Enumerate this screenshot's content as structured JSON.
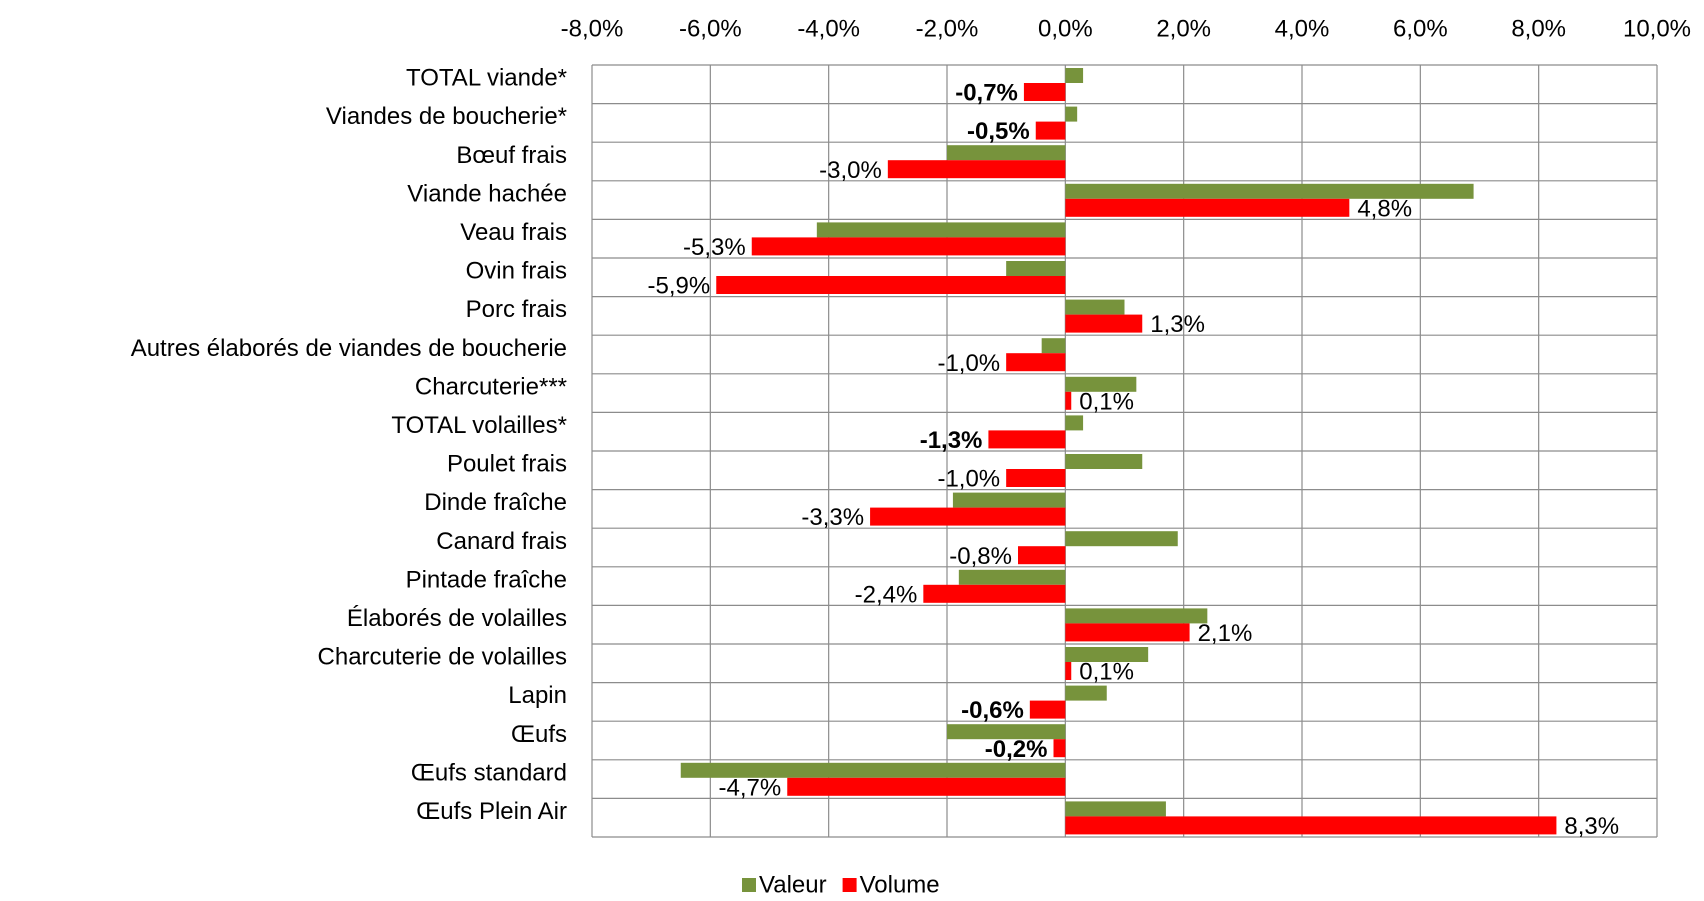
{
  "chart_data": {
    "type": "barh",
    "categories": [
      "TOTAL viande*",
      "Viandes de boucherie*",
      "Bœuf frais",
      "Viande hachée",
      "Veau frais",
      "Ovin frais",
      "Porc frais",
      "Autres élaborés de viandes de boucherie",
      "Charcuterie***",
      "TOTAL volailles*",
      "Poulet frais",
      "Dinde fraîche",
      "Canard frais",
      "Pintade fraîche",
      "Élaborés de volailles",
      "Charcuterie de volailles",
      "Lapin",
      "Œufs",
      "Œufs standard",
      "Œufs Plein Air"
    ],
    "series": [
      {
        "name": "Valeur",
        "color": "#77933c",
        "values": [
          0.3,
          0.2,
          -2.0,
          6.9,
          -4.2,
          -1.0,
          1.0,
          -0.4,
          1.2,
          0.3,
          1.3,
          -1.9,
          1.9,
          -1.8,
          2.4,
          1.4,
          0.7,
          -2.0,
          -6.5,
          1.7
        ]
      },
      {
        "name": "Volume",
        "color": "#ff0000",
        "values": [
          -0.7,
          -0.5,
          -3.0,
          4.8,
          -5.3,
          -5.9,
          1.3,
          -1.0,
          0.1,
          -1.3,
          -1.0,
          -3.3,
          -0.8,
          -2.4,
          2.1,
          0.1,
          -0.6,
          -0.2,
          -4.7,
          8.3
        ],
        "value_labels": [
          "-0,7%",
          "-0,5%",
          "-3,0%",
          "4,8%",
          "-5,3%",
          "-5,9%",
          "1,3%",
          "-1,0%",
          "0,1%",
          "-1,3%",
          "-1,0%",
          "-3,3%",
          "-0,8%",
          "-2,4%",
          "2,1%",
          "0,1%",
          "-0,6%",
          "-0,2%",
          "-4,7%",
          "8,3%"
        ],
        "value_label_bold": [
          true,
          true,
          false,
          false,
          false,
          false,
          false,
          false,
          false,
          true,
          false,
          false,
          false,
          false,
          false,
          false,
          true,
          true,
          false,
          false
        ]
      }
    ],
    "xlim": [
      -8,
      10
    ],
    "xticks": [
      {
        "value": -8,
        "label": "-8,0%"
      },
      {
        "value": -6,
        "label": "-6,0%"
      },
      {
        "value": -4,
        "label": "-4,0%"
      },
      {
        "value": -2,
        "label": "-2,0%"
      },
      {
        "value": 0,
        "label": "0,0%"
      },
      {
        "value": 2,
        "label": "2,0%"
      },
      {
        "value": 4,
        "label": "4,0%"
      },
      {
        "value": 6,
        "label": "6,0%"
      },
      {
        "value": 8,
        "label": "8,0%"
      },
      {
        "value": 10,
        "label": "10,0%"
      }
    ],
    "grid": true,
    "legend": "bottom"
  }
}
